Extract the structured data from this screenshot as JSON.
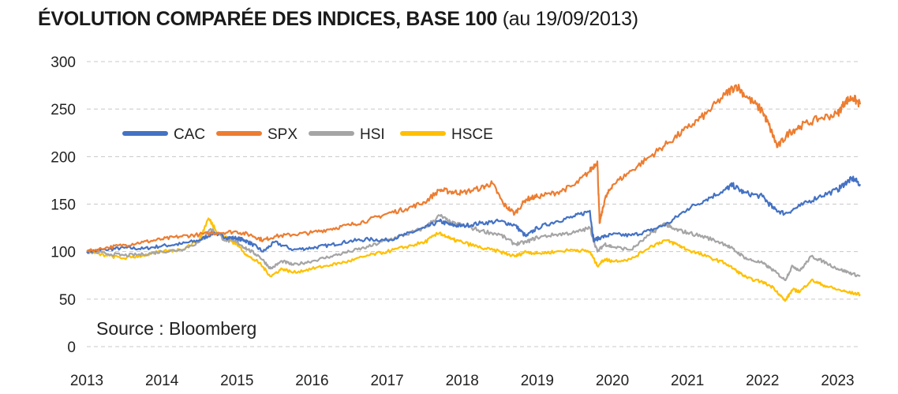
{
  "title": "ÉVOLUTION COMPARÉE DES INDICES, BASE 100",
  "subtitle": "(au 19/09/2013)",
  "source": "Source : Bloomberg",
  "chart_data": {
    "type": "line",
    "xlim": [
      2013.0,
      2023.3
    ],
    "ylim": [
      0,
      300
    ],
    "y_ticks": [
      "0",
      "50",
      "100",
      "150",
      "200",
      "250",
      "300"
    ],
    "x_ticks": [
      "2013",
      "2014",
      "2015",
      "2016",
      "2017",
      "2018",
      "2019",
      "2020",
      "2021",
      "2022",
      "2023"
    ],
    "grid": "horizontal dashed",
    "legend_position": "top-left",
    "series": [
      {
        "name": "CAC",
        "color": "#4472c4",
        "points": [
          [
            2013.0,
            100
          ],
          [
            2013.25,
            102
          ],
          [
            2013.5,
            104
          ],
          [
            2013.75,
            103
          ],
          [
            2014.0,
            106
          ],
          [
            2014.25,
            108
          ],
          [
            2014.5,
            112
          ],
          [
            2014.7,
            120
          ],
          [
            2014.85,
            115
          ],
          [
            2015.0,
            114
          ],
          [
            2015.1,
            112
          ],
          [
            2015.2,
            108
          ],
          [
            2015.35,
            100
          ],
          [
            2015.5,
            110
          ],
          [
            2015.75,
            102
          ],
          [
            2016.0,
            104
          ],
          [
            2016.25,
            107
          ],
          [
            2016.5,
            111
          ],
          [
            2016.75,
            113
          ],
          [
            2017.0,
            112
          ],
          [
            2017.25,
            118
          ],
          [
            2017.5,
            125
          ],
          [
            2017.7,
            132
          ],
          [
            2017.85,
            128
          ],
          [
            2018.0,
            127
          ],
          [
            2018.25,
            130
          ],
          [
            2018.5,
            132
          ],
          [
            2018.7,
            128
          ],
          [
            2018.85,
            116
          ],
          [
            2019.0,
            125
          ],
          [
            2019.25,
            132
          ],
          [
            2019.5,
            137
          ],
          [
            2019.7,
            143
          ],
          [
            2019.75,
            112
          ],
          [
            2019.85,
            115
          ],
          [
            2020.0,
            118
          ],
          [
            2020.25,
            117
          ],
          [
            2020.5,
            122
          ],
          [
            2020.75,
            130
          ],
          [
            2021.0,
            145
          ],
          [
            2021.25,
            155
          ],
          [
            2021.5,
            165
          ],
          [
            2021.6,
            170
          ],
          [
            2021.75,
            162
          ],
          [
            2022.0,
            158
          ],
          [
            2022.15,
            145
          ],
          [
            2022.3,
            140
          ],
          [
            2022.5,
            148
          ],
          [
            2022.75,
            158
          ],
          [
            2023.0,
            165
          ],
          [
            2023.1,
            172
          ],
          [
            2023.2,
            177
          ],
          [
            2023.3,
            171
          ]
        ]
      },
      {
        "name": "SPX",
        "color": "#ed7d31",
        "points": [
          [
            2013.0,
            100
          ],
          [
            2013.25,
            104
          ],
          [
            2013.5,
            107
          ],
          [
            2013.75,
            110
          ],
          [
            2014.0,
            113
          ],
          [
            2014.25,
            116
          ],
          [
            2014.5,
            118
          ],
          [
            2014.75,
            120
          ],
          [
            2015.0,
            121
          ],
          [
            2015.2,
            117
          ],
          [
            2015.35,
            112
          ],
          [
            2015.5,
            116
          ],
          [
            2015.75,
            118
          ],
          [
            2016.0,
            120
          ],
          [
            2016.25,
            124
          ],
          [
            2016.5,
            128
          ],
          [
            2016.75,
            133
          ],
          [
            2017.0,
            140
          ],
          [
            2017.25,
            145
          ],
          [
            2017.5,
            152
          ],
          [
            2017.7,
            165
          ],
          [
            2017.85,
            163
          ],
          [
            2018.0,
            162
          ],
          [
            2018.25,
            167
          ],
          [
            2018.4,
            172
          ],
          [
            2018.55,
            150
          ],
          [
            2018.7,
            140
          ],
          [
            2018.85,
            155
          ],
          [
            2019.0,
            158
          ],
          [
            2019.25,
            162
          ],
          [
            2019.5,
            170
          ],
          [
            2019.7,
            185
          ],
          [
            2019.8,
            195
          ],
          [
            2019.83,
            130
          ],
          [
            2019.9,
            155
          ],
          [
            2020.0,
            170
          ],
          [
            2020.25,
            185
          ],
          [
            2020.5,
            200
          ],
          [
            2020.75,
            215
          ],
          [
            2021.0,
            230
          ],
          [
            2021.25,
            245
          ],
          [
            2021.5,
            265
          ],
          [
            2021.65,
            275
          ],
          [
            2021.8,
            262
          ],
          [
            2022.0,
            248
          ],
          [
            2022.1,
            230
          ],
          [
            2022.2,
            210
          ],
          [
            2022.35,
            225
          ],
          [
            2022.5,
            232
          ],
          [
            2022.75,
            240
          ],
          [
            2023.0,
            245
          ],
          [
            2023.1,
            258
          ],
          [
            2023.2,
            262
          ],
          [
            2023.3,
            255
          ]
        ]
      },
      {
        "name": "HSI",
        "color": "#a5a5a5",
        "points": [
          [
            2013.0,
            100
          ],
          [
            2013.25,
            98
          ],
          [
            2013.5,
            96
          ],
          [
            2013.75,
            97
          ],
          [
            2014.0,
            100
          ],
          [
            2014.25,
            102
          ],
          [
            2014.5,
            110
          ],
          [
            2014.65,
            124
          ],
          [
            2014.85,
            112
          ],
          [
            2015.0,
            110
          ],
          [
            2015.15,
            102
          ],
          [
            2015.3,
            95
          ],
          [
            2015.45,
            82
          ],
          [
            2015.6,
            90
          ],
          [
            2015.75,
            86
          ],
          [
            2016.0,
            90
          ],
          [
            2016.25,
            95
          ],
          [
            2016.5,
            100
          ],
          [
            2016.75,
            105
          ],
          [
            2017.0,
            112
          ],
          [
            2017.25,
            118
          ],
          [
            2017.5,
            125
          ],
          [
            2017.7,
            138
          ],
          [
            2017.85,
            130
          ],
          [
            2018.0,
            128
          ],
          [
            2018.25,
            122
          ],
          [
            2018.5,
            118
          ],
          [
            2018.7,
            108
          ],
          [
            2018.85,
            110
          ],
          [
            2019.0,
            115
          ],
          [
            2019.25,
            118
          ],
          [
            2019.5,
            120
          ],
          [
            2019.7,
            125
          ],
          [
            2019.8,
            100
          ],
          [
            2019.9,
            108
          ],
          [
            2020.0,
            105
          ],
          [
            2020.25,
            102
          ],
          [
            2020.5,
            118
          ],
          [
            2020.7,
            130
          ],
          [
            2020.8,
            124
          ],
          [
            2021.0,
            120
          ],
          [
            2021.25,
            115
          ],
          [
            2021.5,
            108
          ],
          [
            2021.65,
            100
          ],
          [
            2021.8,
            92
          ],
          [
            2022.0,
            88
          ],
          [
            2022.15,
            80
          ],
          [
            2022.3,
            70
          ],
          [
            2022.4,
            85
          ],
          [
            2022.5,
            80
          ],
          [
            2022.65,
            95
          ],
          [
            2022.8,
            90
          ],
          [
            2023.0,
            82
          ],
          [
            2023.15,
            78
          ],
          [
            2023.3,
            74
          ]
        ]
      },
      {
        "name": "HSCE",
        "color": "#ffc000",
        "points": [
          [
            2013.0,
            100
          ],
          [
            2013.25,
            96
          ],
          [
            2013.5,
            93
          ],
          [
            2013.75,
            96
          ],
          [
            2014.0,
            100
          ],
          [
            2014.25,
            102
          ],
          [
            2014.5,
            112
          ],
          [
            2014.62,
            135
          ],
          [
            2014.75,
            120
          ],
          [
            2014.9,
            112
          ],
          [
            2015.0,
            108
          ],
          [
            2015.15,
            95
          ],
          [
            2015.3,
            88
          ],
          [
            2015.45,
            74
          ],
          [
            2015.6,
            82
          ],
          [
            2015.75,
            78
          ],
          [
            2016.0,
            82
          ],
          [
            2016.25,
            86
          ],
          [
            2016.5,
            90
          ],
          [
            2016.75,
            96
          ],
          [
            2017.0,
            100
          ],
          [
            2017.25,
            105
          ],
          [
            2017.5,
            110
          ],
          [
            2017.7,
            120
          ],
          [
            2017.85,
            113
          ],
          [
            2018.0,
            110
          ],
          [
            2018.25,
            104
          ],
          [
            2018.5,
            100
          ],
          [
            2018.7,
            95
          ],
          [
            2018.85,
            100
          ],
          [
            2019.0,
            98
          ],
          [
            2019.25,
            100
          ],
          [
            2019.5,
            102
          ],
          [
            2019.7,
            100
          ],
          [
            2019.8,
            85
          ],
          [
            2019.9,
            92
          ],
          [
            2020.0,
            90
          ],
          [
            2020.25,
            92
          ],
          [
            2020.5,
            105
          ],
          [
            2020.7,
            112
          ],
          [
            2020.85,
            108
          ],
          [
            2021.0,
            102
          ],
          [
            2021.25,
            95
          ],
          [
            2021.5,
            88
          ],
          [
            2021.65,
            80
          ],
          [
            2021.8,
            72
          ],
          [
            2022.0,
            68
          ],
          [
            2022.15,
            62
          ],
          [
            2022.3,
            48
          ],
          [
            2022.4,
            60
          ],
          [
            2022.5,
            58
          ],
          [
            2022.65,
            70
          ],
          [
            2022.8,
            65
          ],
          [
            2023.0,
            60
          ],
          [
            2023.15,
            57
          ],
          [
            2023.3,
            55
          ]
        ]
      }
    ]
  }
}
